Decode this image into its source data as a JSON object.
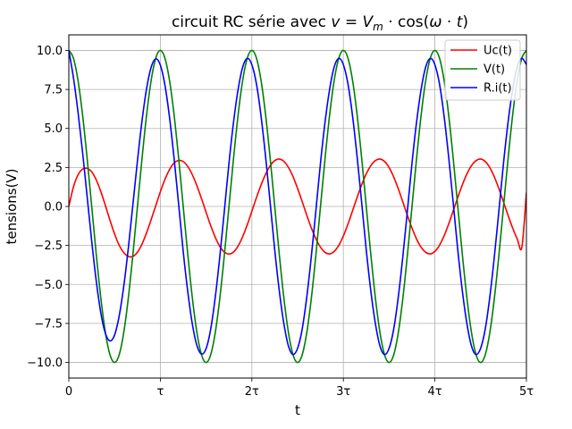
{
  "chart_data": {
    "type": "line",
    "title": "circuit RC série avec v = V_m · cos(ω · t)",
    "title_parts": {
      "prefix": "circuit RC série avec ",
      "v": "v",
      "eq": " = ",
      "V": "V",
      "m": "m",
      "dot1": " · cos(",
      "omega": "ω",
      "dot2": " · ",
      "t": "t",
      "close": ")"
    },
    "xlabel": "t",
    "ylabel": "tensions(V)",
    "xlim": [
      0,
      5
    ],
    "ylim": [
      -11,
      11
    ],
    "x_unit": "τ",
    "grid": true,
    "legend_position": "top-right",
    "xticks": [
      {
        "value": 0,
        "label": "0"
      },
      {
        "value": 1,
        "label": "τ"
      },
      {
        "value": 2,
        "label": "2τ"
      },
      {
        "value": 3,
        "label": "3τ"
      },
      {
        "value": 4,
        "label": "4τ"
      },
      {
        "value": 5,
        "label": "5τ"
      }
    ],
    "yticks": [
      {
        "value": 10,
        "label": "10.0"
      },
      {
        "value": 7.5,
        "label": "7.5"
      },
      {
        "value": 5,
        "label": "5.0"
      },
      {
        "value": 2.5,
        "label": "2.5"
      },
      {
        "value": 0,
        "label": "0.0"
      },
      {
        "value": -2.5,
        "label": "−2.5"
      },
      {
        "value": -5,
        "label": "−5.0"
      },
      {
        "value": -7.5,
        "label": "−7.5"
      },
      {
        "value": -10,
        "label": "−10.0"
      }
    ],
    "series": [
      {
        "name": "Uc(t)",
        "color": "#ff0000",
        "x": [
          0,
          0.05,
          0.1,
          0.15,
          0.2,
          0.25,
          0.3,
          0.35,
          0.4,
          0.45,
          0.5,
          0.55,
          0.6,
          0.65,
          0.7,
          0.75,
          0.8,
          0.85,
          0.9,
          0.95,
          1.0,
          1.05,
          1.1,
          1.15,
          1.2,
          1.25,
          1.3,
          1.35,
          1.4,
          1.45,
          1.5,
          1.55,
          1.6,
          1.65,
          1.7,
          1.75,
          1.8,
          1.85,
          1.9,
          1.95,
          2.0,
          2.05,
          2.1,
          2.15,
          2.2,
          2.25,
          2.3,
          2.35,
          2.4,
          2.45,
          2.5,
          2.55,
          2.6,
          2.65,
          2.7,
          2.75,
          2.8,
          2.85,
          2.9,
          2.95,
          3.0,
          3.05,
          3.1,
          3.15,
          3.2,
          3.25,
          3.3,
          3.35,
          3.4,
          3.45,
          3.5,
          3.55,
          3.6,
          3.65,
          3.7,
          3.75,
          3.8,
          3.85,
          3.9,
          3.95,
          4.0,
          4.05,
          4.1,
          4.15,
          4.2,
          4.25,
          4.3,
          4.35,
          4.4,
          4.45,
          4.5,
          4.55,
          4.6,
          4.65,
          4.7,
          4.75,
          4.8,
          4.85,
          4.9,
          4.95,
          5.0
        ],
        "y": [
          0.0,
          1.24,
          2.02,
          2.39,
          2.44,
          2.22,
          1.7,
          0.95,
          0.05,
          -0.89,
          -1.76,
          -2.48,
          -2.96,
          -3.2,
          -3.2,
          -2.93,
          -2.41,
          -1.68,
          -0.84,
          0.05,
          0.94,
          1.73,
          2.36,
          2.78,
          2.95,
          2.88,
          2.56,
          2.03,
          1.32,
          0.5,
          -0.37,
          -1.22,
          -1.97,
          -2.56,
          -2.93,
          -3.05,
          -2.92,
          -2.53,
          -1.93,
          -1.17,
          -0.31,
          0.56,
          1.37,
          2.07,
          2.61,
          2.94,
          3.04,
          2.89,
          2.5,
          1.91,
          1.15,
          0.31,
          -0.56,
          -1.38,
          -2.08,
          -2.61,
          -2.94,
          -3.04,
          -2.88,
          -2.49,
          -1.89,
          -1.13,
          -0.28,
          0.58,
          1.39,
          2.09,
          2.62,
          2.94,
          3.04,
          2.88,
          2.49,
          1.89,
          1.13,
          0.28,
          -0.58,
          -1.39,
          -2.09,
          -2.62,
          -2.94,
          -3.04,
          -2.88,
          -2.49,
          -1.89,
          -1.13,
          -0.28,
          0.58,
          1.39,
          2.09,
          2.62,
          2.94,
          3.04,
          2.88,
          2.49,
          1.89,
          1.13,
          0.28,
          -0.58,
          -1.39,
          -2.09,
          -2.62,
          0.9
        ]
      },
      {
        "name": "V(t)",
        "color": "#008000",
        "x": [
          0,
          0.05,
          0.1,
          0.15,
          0.2,
          0.25,
          0.3,
          0.35,
          0.4,
          0.45,
          0.5,
          0.55,
          0.6,
          0.65,
          0.7,
          0.75,
          0.8,
          0.85,
          0.9,
          0.95,
          1.0,
          1.05,
          1.1,
          1.15,
          1.2,
          1.25,
          1.3,
          1.35,
          1.4,
          1.45,
          1.5,
          1.55,
          1.6,
          1.65,
          1.7,
          1.75,
          1.8,
          1.85,
          1.9,
          1.95,
          2.0,
          2.05,
          2.1,
          2.15,
          2.2,
          2.25,
          2.3,
          2.35,
          2.4,
          2.45,
          2.5,
          2.55,
          2.6,
          2.65,
          2.7,
          2.75,
          2.8,
          2.85,
          2.9,
          2.95,
          3.0,
          3.05,
          3.1,
          3.15,
          3.2,
          3.25,
          3.3,
          3.35,
          3.4,
          3.45,
          3.5,
          3.55,
          3.6,
          3.65,
          3.7,
          3.75,
          3.8,
          3.85,
          3.9,
          3.95,
          4.0,
          4.05,
          4.1,
          4.15,
          4.2,
          4.25,
          4.3,
          4.35,
          4.4,
          4.45,
          4.5,
          4.55,
          4.6,
          4.65,
          4.7,
          4.75,
          4.8,
          4.85,
          4.9,
          4.95,
          5.0
        ],
        "y": [
          10.0,
          9.51,
          8.09,
          5.88,
          3.09,
          0.0,
          -3.09,
          -5.88,
          -8.09,
          -9.51,
          -10.0,
          -9.51,
          -8.09,
          -5.88,
          -3.09,
          0.0,
          3.09,
          5.88,
          8.09,
          9.51,
          10.0,
          9.51,
          8.09,
          5.88,
          3.09,
          0.0,
          -3.09,
          -5.88,
          -8.09,
          -9.51,
          -10.0,
          -9.51,
          -8.09,
          -5.88,
          -3.09,
          0.0,
          3.09,
          5.88,
          8.09,
          9.51,
          10.0,
          9.51,
          8.09,
          5.88,
          3.09,
          0.0,
          -3.09,
          -5.88,
          -8.09,
          -9.51,
          -10.0,
          -9.51,
          -8.09,
          -5.88,
          -3.09,
          0.0,
          3.09,
          5.88,
          8.09,
          9.51,
          10.0,
          9.51,
          8.09,
          5.88,
          3.09,
          0.0,
          -3.09,
          -5.88,
          -8.09,
          -9.51,
          -10.0,
          -9.51,
          -8.09,
          -5.88,
          -3.09,
          0.0,
          3.09,
          5.88,
          8.09,
          9.51,
          10.0,
          9.51,
          8.09,
          5.88,
          3.09,
          0.0,
          -3.09,
          -5.88,
          -8.09,
          -9.51,
          -10.0,
          -9.51,
          -8.09,
          -5.88,
          -3.09,
          0.0,
          3.09,
          5.88,
          8.09,
          9.51,
          10.0
        ]
      },
      {
        "name": "R.i(t)",
        "color": "#0000ff",
        "x": [
          0,
          0.05,
          0.1,
          0.15,
          0.2,
          0.25,
          0.3,
          0.35,
          0.4,
          0.45,
          0.5,
          0.55,
          0.6,
          0.65,
          0.7,
          0.75,
          0.8,
          0.85,
          0.9,
          0.95,
          1.0,
          1.05,
          1.1,
          1.15,
          1.2,
          1.25,
          1.3,
          1.35,
          1.4,
          1.45,
          1.5,
          1.55,
          1.6,
          1.65,
          1.7,
          1.75,
          1.8,
          1.85,
          1.9,
          1.95,
          2.0,
          2.05,
          2.1,
          2.15,
          2.2,
          2.25,
          2.3,
          2.35,
          2.4,
          2.45,
          2.5,
          2.55,
          2.6,
          2.65,
          2.7,
          2.75,
          2.8,
          2.85,
          2.9,
          2.95,
          3.0,
          3.05,
          3.1,
          3.15,
          3.2,
          3.25,
          3.3,
          3.35,
          3.4,
          3.45,
          3.5,
          3.55,
          3.6,
          3.65,
          3.7,
          3.75,
          3.8,
          3.85,
          3.9,
          3.95,
          4.0,
          4.05,
          4.1,
          4.15,
          4.2,
          4.25,
          4.3,
          4.35,
          4.4,
          4.45,
          4.5,
          4.55,
          4.6,
          4.65,
          4.7,
          4.75,
          4.8,
          4.85,
          4.9,
          4.95,
          5.0
        ],
        "y": [
          10.0,
          8.27,
          6.07,
          3.49,
          0.65,
          -2.22,
          -4.79,
          -6.83,
          -8.14,
          -8.62,
          -8.24,
          -7.03,
          -5.13,
          -2.68,
          0.11,
          2.93,
          5.5,
          7.56,
          8.93,
          9.46,
          9.06,
          7.78,
          5.73,
          3.1,
          0.14,
          -2.88,
          -5.47,
          -7.55,
          -8.92,
          -9.46,
          -9.11,
          -7.87,
          -5.82,
          -3.21,
          -0.25,
          2.78,
          5.41,
          7.51,
          8.94,
          9.49,
          9.09,
          7.86,
          5.81,
          3.2,
          0.24,
          -2.79,
          -5.42,
          -7.52,
          -8.95,
          -9.49,
          -9.09,
          -7.86,
          -5.81,
          -3.2,
          -0.24,
          2.79,
          5.42,
          7.52,
          8.95,
          9.49,
          9.09,
          7.86,
          5.81,
          3.2,
          0.24,
          -2.79,
          -5.42,
          -7.52,
          -8.95,
          -9.49,
          -9.09,
          -7.86,
          -5.81,
          -3.2,
          -0.24,
          2.79,
          5.42,
          7.52,
          8.95,
          9.49,
          9.09,
          7.86,
          5.81,
          3.2,
          0.24,
          -2.79,
          -5.42,
          -7.52,
          -8.95,
          -9.49,
          -9.09,
          -7.86,
          -5.81,
          -3.2,
          -0.24,
          2.79,
          5.42,
          7.52,
          8.95,
          9.49,
          9.09
        ]
      }
    ]
  }
}
